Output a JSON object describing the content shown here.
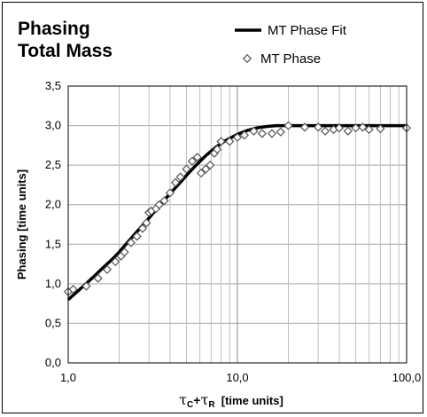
{
  "chart_data": {
    "type": "scatter",
    "title_lines": [
      "Phasing",
      "Total Mass"
    ],
    "ylabel": "Phasing  [time units]",
    "xlabel_parts": {
      "tau1": "τ",
      "sub1": "C",
      "plus": "+",
      "tau2": "τ",
      "sub2": "R",
      "unit": "  [time units]"
    },
    "x_scale": "log",
    "xlim": [
      1,
      100
    ],
    "ylim": [
      0,
      3.5
    ],
    "x_ticks": [
      1,
      10,
      100
    ],
    "x_tick_labels": [
      "1,0",
      "10,0",
      "100,0"
    ],
    "y_ticks": [
      0,
      0.5,
      1.0,
      1.5,
      2.0,
      2.5,
      3.0,
      3.5
    ],
    "y_tick_labels": [
      "0,0",
      "0,5",
      "1,0",
      "1,5",
      "2,0",
      "2,5",
      "3,0",
      "3,5"
    ],
    "grid": true,
    "legend_position": "top-right",
    "series": [
      {
        "name": "MT Phase Fit",
        "style": "line",
        "color": "#000000",
        "x": [
          1.0,
          1.2,
          1.4,
          1.6,
          1.8,
          2.0,
          2.3,
          2.6,
          3.0,
          3.5,
          4.0,
          4.5,
          5.0,
          5.7,
          6.5,
          7.5,
          8.5,
          10.0,
          11.5,
          13.0,
          15.0,
          17.0,
          20.0,
          25.0,
          30.0,
          50.0,
          100.0
        ],
        "y": [
          0.8,
          0.95,
          1.08,
          1.2,
          1.3,
          1.4,
          1.55,
          1.68,
          1.83,
          2.0,
          2.14,
          2.26,
          2.37,
          2.5,
          2.62,
          2.73,
          2.81,
          2.89,
          2.94,
          2.97,
          2.99,
          3.0,
          3.0,
          3.0,
          3.0,
          3.0,
          3.0
        ]
      },
      {
        "name": "MT Phase",
        "style": "marker",
        "marker": "diamond",
        "color": "#555555",
        "x": [
          1.0,
          1.07,
          1.28,
          1.5,
          1.7,
          1.9,
          2.05,
          2.15,
          2.35,
          2.55,
          2.75,
          2.9,
          3.0,
          3.1,
          3.3,
          3.45,
          3.7,
          4.0,
          4.3,
          4.6,
          5.0,
          5.4,
          5.8,
          6.1,
          6.5,
          6.9,
          7.3,
          7.6,
          8.0,
          9.0,
          10.0,
          11.0,
          12.5,
          14.0,
          16.0,
          18.0,
          20.0,
          25.0,
          30.0,
          33.0,
          37.0,
          40.0,
          45.0,
          50.0,
          55.0,
          60.0,
          70.0,
          100.0
        ],
        "y": [
          0.9,
          0.93,
          0.97,
          1.07,
          1.18,
          1.28,
          1.35,
          1.4,
          1.52,
          1.6,
          1.7,
          1.77,
          1.9,
          1.92,
          1.95,
          2.0,
          2.05,
          2.15,
          2.28,
          2.35,
          2.45,
          2.55,
          2.6,
          2.4,
          2.45,
          2.5,
          2.65,
          2.7,
          2.8,
          2.8,
          2.85,
          2.88,
          2.93,
          2.9,
          2.9,
          2.92,
          3.0,
          2.98,
          2.98,
          2.93,
          2.95,
          2.97,
          2.93,
          2.97,
          2.98,
          2.95,
          2.96,
          2.97
        ]
      }
    ]
  }
}
